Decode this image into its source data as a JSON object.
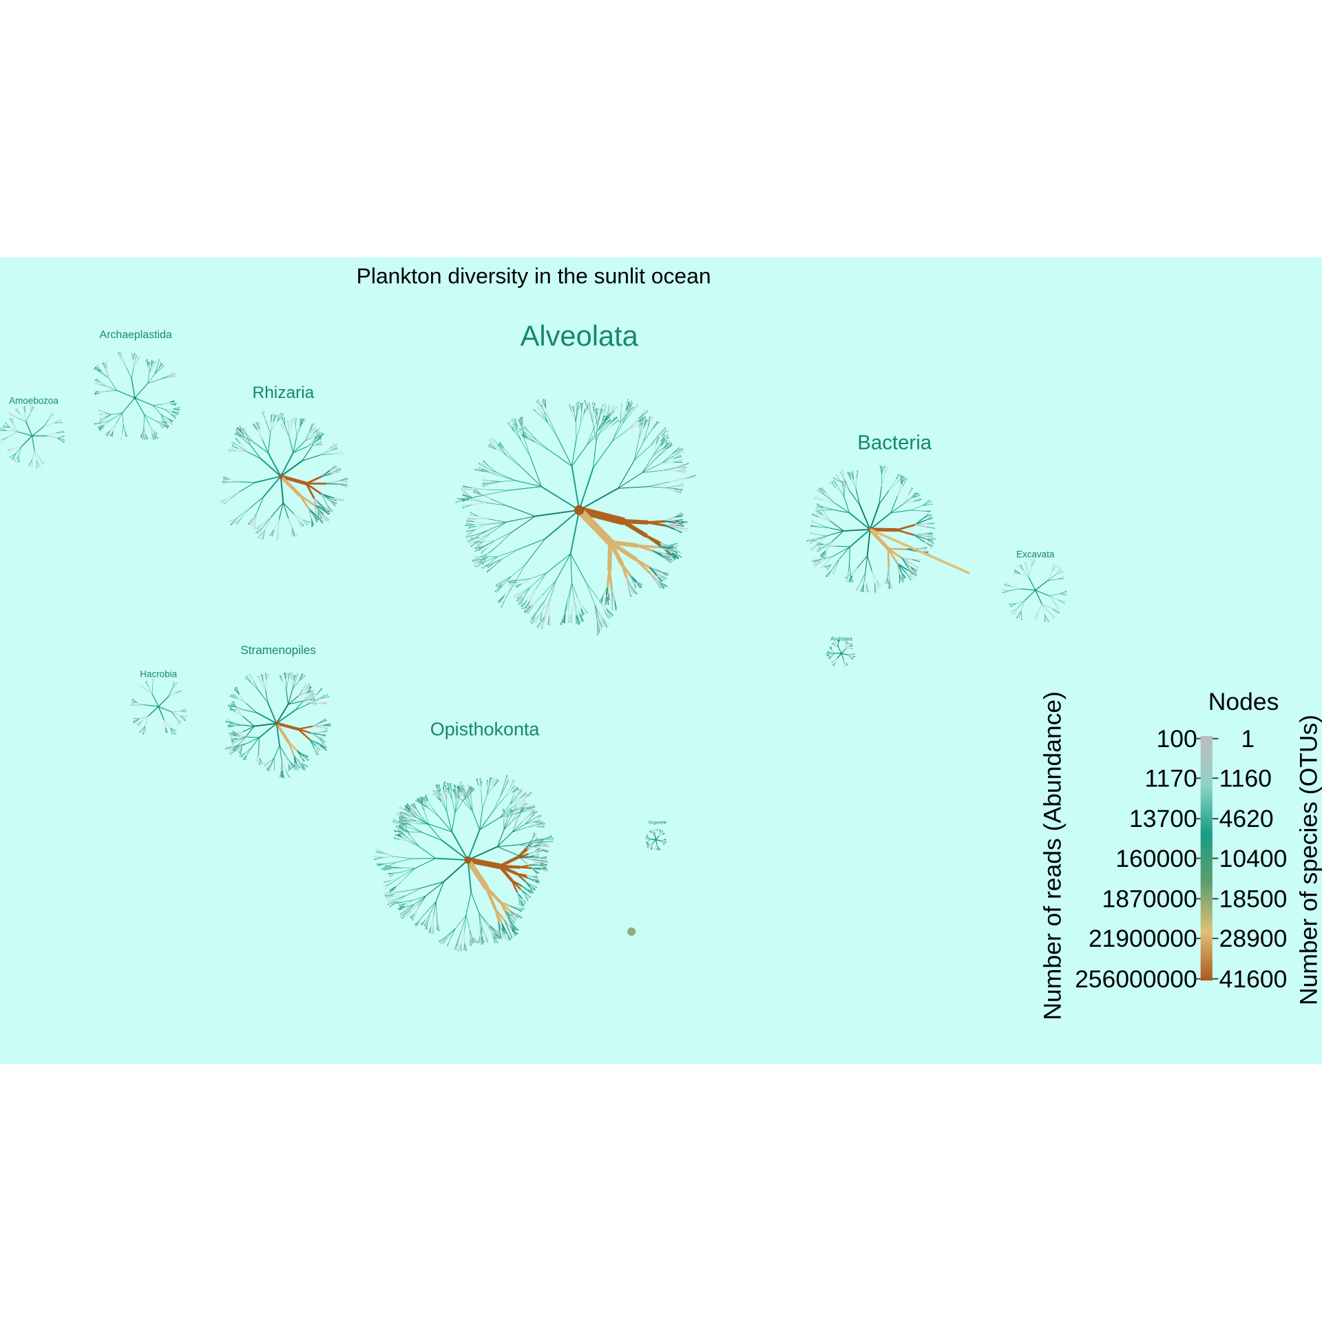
{
  "title": "Plankton diversity in the sunlit ocean",
  "groups": [
    "Amoebozoa",
    "Archaeplastida",
    "Rhizaria",
    "Alveolata",
    "Bacteria",
    "Excavata",
    "Archaea",
    "Hacrobia",
    "Stramenopiles",
    "Opisthokonta",
    "Organelle"
  ],
  "legend": {
    "title": "Nodes",
    "left_axis_title": "Number of reads (Abundance)",
    "right_axis_title": "Number of species (OTUs)",
    "left_ticks": [
      100,
      1170,
      13700,
      160000,
      1870000,
      21900000,
      256000000
    ],
    "right_ticks": [
      1,
      1160,
      4620,
      10400,
      18500,
      28900,
      41600
    ],
    "colors": [
      "#bdbdbd",
      "#8fd3c8",
      "#1a9c85",
      "#5e9e6e",
      "#e0c07a",
      "#a85a1c"
    ]
  }
}
